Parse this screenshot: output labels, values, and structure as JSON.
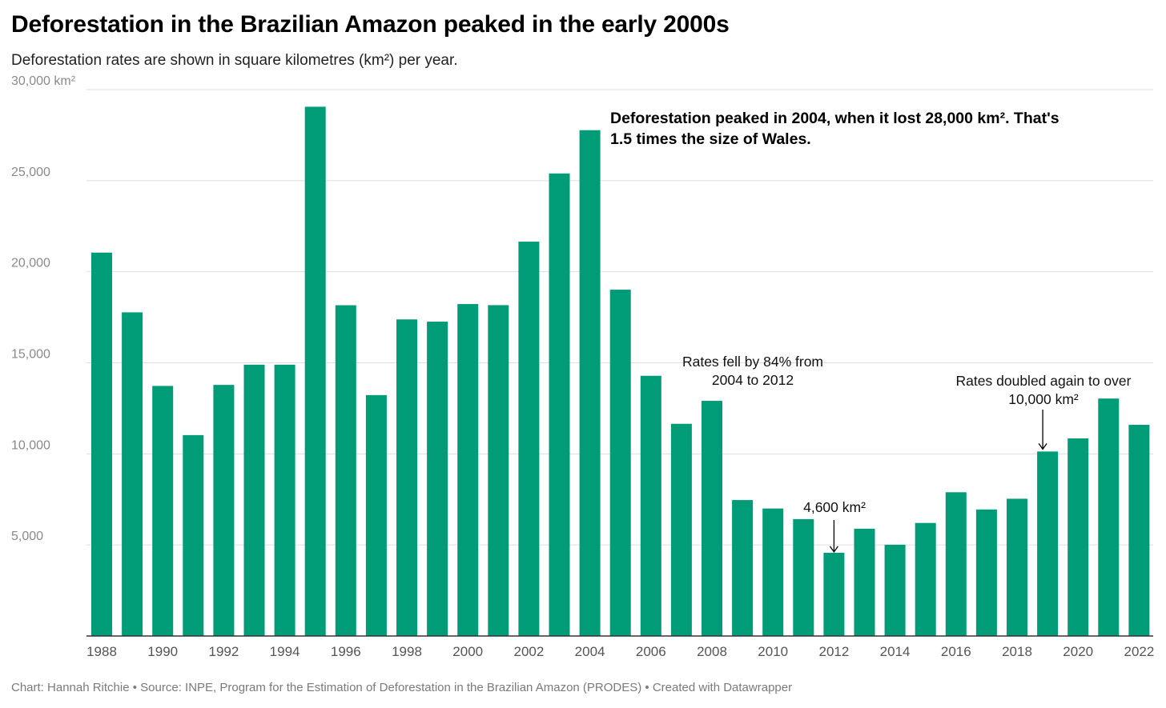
{
  "header": {
    "title": "Deforestation in the Brazilian Amazon peaked in the early 2000s",
    "subtitle": "Deforestation rates are shown in square kilometres (km²) per year."
  },
  "footer": {
    "credit": "Chart: Hannah Ritchie • Source: INPE, Program for the Estimation of Deforestation in the Brazilian Amazon (PRODES) • Created with Datawrapper"
  },
  "colors": {
    "bar": "#009b77",
    "grid": "#dedede",
    "axis": "#333333"
  },
  "chart_data": {
    "type": "bar",
    "categories": [
      "1988",
      "1989",
      "1990",
      "1991",
      "1992",
      "1993",
      "1994",
      "1995",
      "1996",
      "1997",
      "1998",
      "1999",
      "2000",
      "2001",
      "2002",
      "2003",
      "2004",
      "2005",
      "2006",
      "2007",
      "2008",
      "2009",
      "2010",
      "2011",
      "2012",
      "2013",
      "2014",
      "2015",
      "2016",
      "2017",
      "2018",
      "2019",
      "2020",
      "2021",
      "2022"
    ],
    "values": [
      21050,
      17770,
      13730,
      11030,
      13786,
      14896,
      14896,
      29059,
      18161,
      13227,
      17383,
      17259,
      18226,
      18165,
      21651,
      25396,
      27772,
      19014,
      14286,
      11651,
      12911,
      7464,
      7000,
      6418,
      4571,
      5891,
      5012,
      6207,
      7893,
      6947,
      7536,
      10129,
      10851,
      13038,
      11594
    ],
    "x_tick_labels": [
      "1988",
      "1990",
      "1992",
      "1994",
      "1996",
      "1998",
      "2000",
      "2002",
      "2004",
      "2006",
      "2008",
      "2010",
      "2012",
      "2014",
      "2016",
      "2018",
      "2020",
      "2022"
    ],
    "y_ticks": [
      {
        "value": 5000,
        "label": "5,000"
      },
      {
        "value": 10000,
        "label": "10,000"
      },
      {
        "value": 15000,
        "label": "15,000"
      },
      {
        "value": 20000,
        "label": "20,000"
      },
      {
        "value": 25000,
        "label": "25,000"
      },
      {
        "value": 30000,
        "label": "30,000 km²"
      }
    ],
    "ylim": [
      0,
      30000
    ],
    "grid": true,
    "annotations": [
      {
        "lines": [
          "Deforestation peaked in 2004, when it lost 28,000 km². That's",
          "1.5 times the size of Wales."
        ],
        "bold": true,
        "anchor": "start"
      },
      {
        "lines": [
          "Rates fell by 84% from",
          "2004 to 2012"
        ],
        "bold": false,
        "anchor": "middle"
      },
      {
        "lines": [
          "4,600 km²"
        ],
        "bold": false,
        "anchor": "middle"
      },
      {
        "lines": [
          "Rates doubled again to over",
          "10,000 km²"
        ],
        "bold": false,
        "anchor": "middle"
      }
    ]
  }
}
